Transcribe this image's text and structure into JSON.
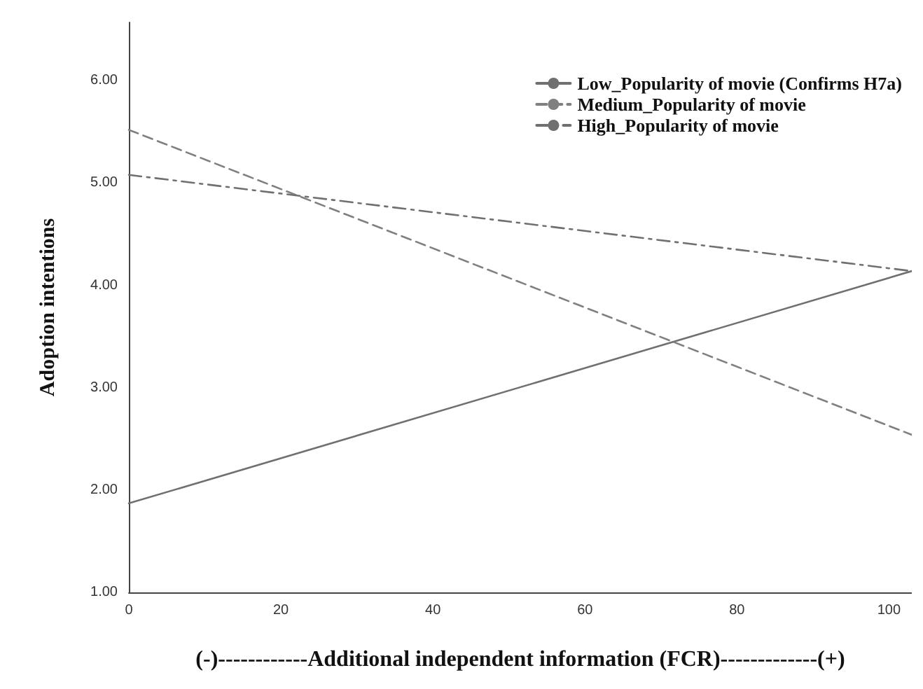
{
  "chart_data": {
    "type": "line",
    "xlabel": "(-)------------Additional independent information (FCR)-------------(+)",
    "ylabel": "Adoption intentions",
    "x": [
      0,
      103
    ],
    "series": [
      {
        "name": "Low_Popularity of movie (Confirms H7a)",
        "color": "#707070",
        "line_style": "solid",
        "values": [
          1.87,
          4.14
        ]
      },
      {
        "name": "Medium_Popularity of movie",
        "color": "#808080",
        "line_style": "dashed",
        "values": [
          5.52,
          2.54
        ]
      },
      {
        "name": "High_Popularity of movie",
        "color": "#707070",
        "line_style": "dashdot",
        "values": [
          5.08,
          4.14
        ]
      }
    ],
    "xlim": [
      0,
      103
    ],
    "xticks": [
      0,
      20,
      40,
      60,
      80,
      100
    ],
    "ylim": [
      1,
      6.57
    ],
    "yticks": [
      {
        "value": 1,
        "label": "1.00"
      },
      {
        "value": 2,
        "label": "2.00"
      },
      {
        "value": 3,
        "label": "3.00"
      },
      {
        "value": 4,
        "label": "4.00"
      },
      {
        "value": 5,
        "label": "5.00"
      },
      {
        "value": 6,
        "label": "6.00"
      }
    ],
    "grid": false,
    "legend": "top right",
    "marker": "none"
  }
}
